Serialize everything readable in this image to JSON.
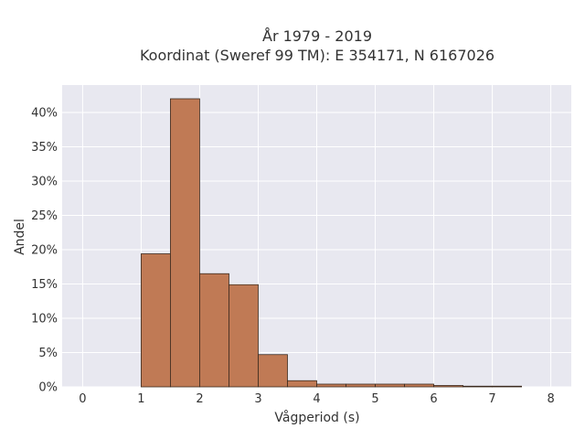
{
  "chart_data": {
    "type": "bar",
    "title": "År 1979 - 2019",
    "subtitle": "Koordinat (Sweref 99 TM): E 354171, N 6167026",
    "xlabel": "Vågperiod (s)",
    "ylabel": "Andel",
    "xlim": [
      -0.35,
      8.35
    ],
    "ylim": [
      0,
      0.44
    ],
    "x_ticks": [
      0,
      1,
      2,
      3,
      4,
      5,
      6,
      7,
      8
    ],
    "x_tick_labels": [
      "0",
      "1",
      "2",
      "3",
      "4",
      "5",
      "6",
      "7",
      "8"
    ],
    "y_ticks": [
      0,
      0.05,
      0.1,
      0.15,
      0.2,
      0.25,
      0.3,
      0.35,
      0.4
    ],
    "y_tick_labels": [
      "0%",
      "5%",
      "10%",
      "15%",
      "20%",
      "25%",
      "30%",
      "35%",
      "40%"
    ],
    "bin_width": 0.5,
    "bins": [
      {
        "x0": 1.0,
        "x1": 1.5,
        "value": 0.194
      },
      {
        "x0": 1.5,
        "x1": 2.0,
        "value": 0.42
      },
      {
        "x0": 2.0,
        "x1": 2.5,
        "value": 0.165
      },
      {
        "x0": 2.5,
        "x1": 3.0,
        "value": 0.149
      },
      {
        "x0": 3.0,
        "x1": 3.5,
        "value": 0.047
      },
      {
        "x0": 3.5,
        "x1": 4.0,
        "value": 0.009
      },
      {
        "x0": 4.0,
        "x1": 4.5,
        "value": 0.004
      },
      {
        "x0": 4.5,
        "x1": 5.0,
        "value": 0.004
      },
      {
        "x0": 5.0,
        "x1": 5.5,
        "value": 0.004
      },
      {
        "x0": 5.5,
        "x1": 6.0,
        "value": 0.004
      },
      {
        "x0": 6.0,
        "x1": 6.5,
        "value": 0.002
      },
      {
        "x0": 6.5,
        "x1": 7.0,
        "value": 0.001
      },
      {
        "x0": 7.0,
        "x1": 7.5,
        "value": 0.001
      }
    ],
    "grid": true,
    "colors": {
      "bar_fill": "#c07a55",
      "bar_edge": "#3b2a1e",
      "plot_background": "#e8e8f0",
      "grid": "#ffffff"
    }
  }
}
